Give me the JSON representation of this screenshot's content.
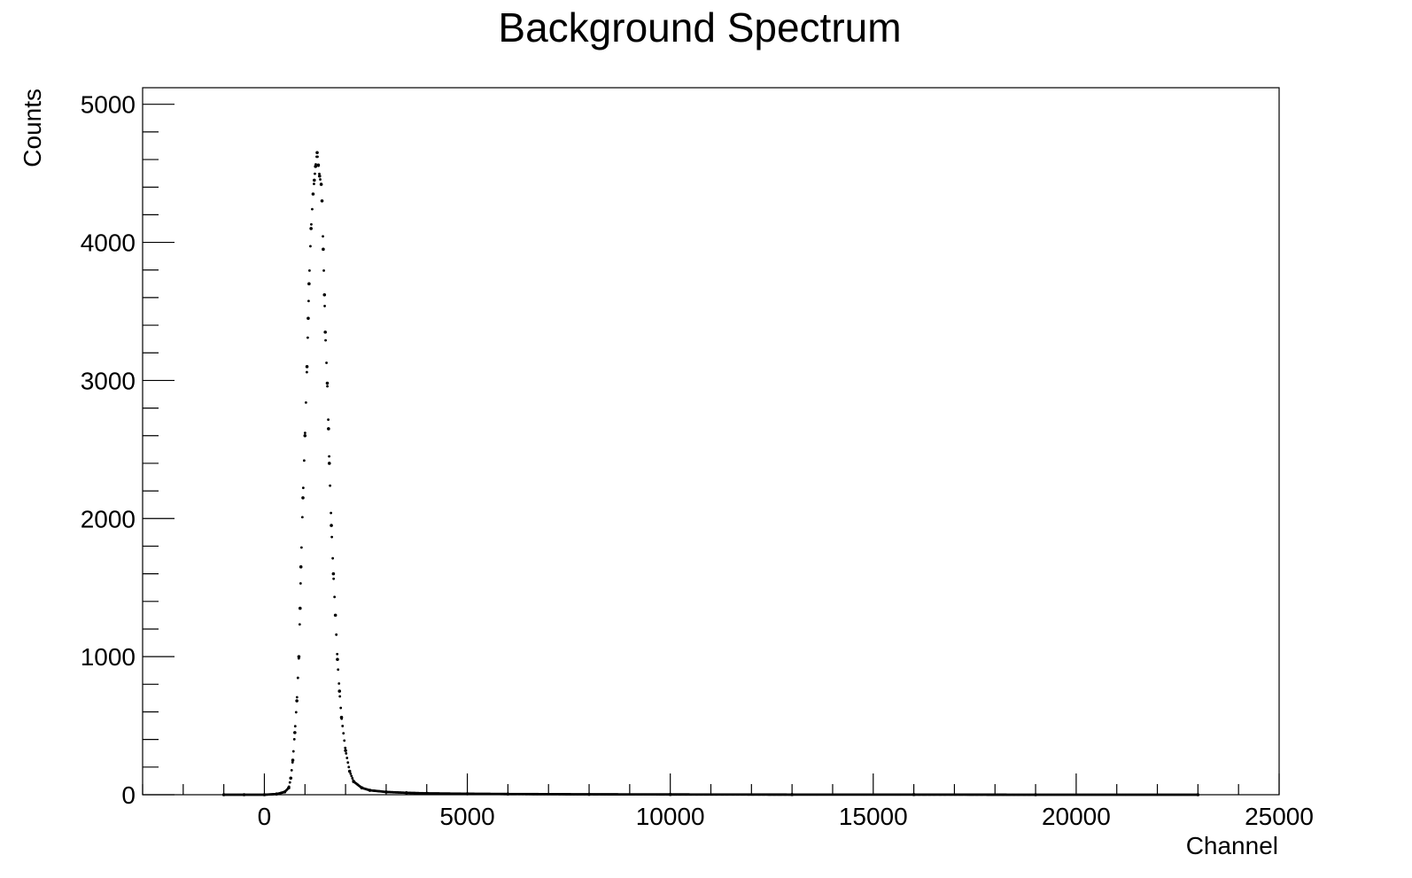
{
  "chart_data": {
    "type": "scatter",
    "title": "Background Spectrum",
    "xlabel": "Channel",
    "ylabel": "Counts",
    "xlim": [
      -3000,
      25000
    ],
    "ylim": [
      0,
      5120
    ],
    "x_ticks": [
      0,
      5000,
      10000,
      15000,
      20000,
      25000
    ],
    "y_ticks": [
      0,
      1000,
      2000,
      3000,
      4000,
      5000
    ],
    "grid": false,
    "legend": "none",
    "marker_color": "#000000",
    "series": [
      {
        "x": [
          -1000,
          -500,
          0,
          300,
          500,
          600,
          650,
          700,
          750,
          800,
          850,
          880,
          900,
          950,
          1000,
          1050,
          1080,
          1100,
          1150,
          1200,
          1230,
          1260,
          1300,
          1330,
          1360,
          1400,
          1420,
          1450,
          1480,
          1500,
          1550,
          1580,
          1600,
          1650,
          1700,
          1750,
          1800,
          1850,
          1900,
          2000,
          2100,
          2200,
          2400,
          2600,
          3000,
          3500,
          4000,
          5000,
          6000,
          8000,
          10000,
          13000,
          16000,
          19000,
          23000
        ],
        "y": [
          0,
          0,
          0,
          5,
          20,
          50,
          120,
          250,
          450,
          680,
          1000,
          1350,
          1650,
          2150,
          2600,
          3100,
          3450,
          3700,
          4100,
          4350,
          4450,
          4550,
          4650,
          4560,
          4480,
          4420,
          4300,
          3950,
          3620,
          3350,
          2980,
          2650,
          2400,
          1950,
          1600,
          1300,
          980,
          750,
          560,
          320,
          170,
          95,
          50,
          32,
          20,
          14,
          10,
          7,
          5,
          3,
          2,
          1,
          1,
          0,
          0
        ]
      }
    ]
  }
}
